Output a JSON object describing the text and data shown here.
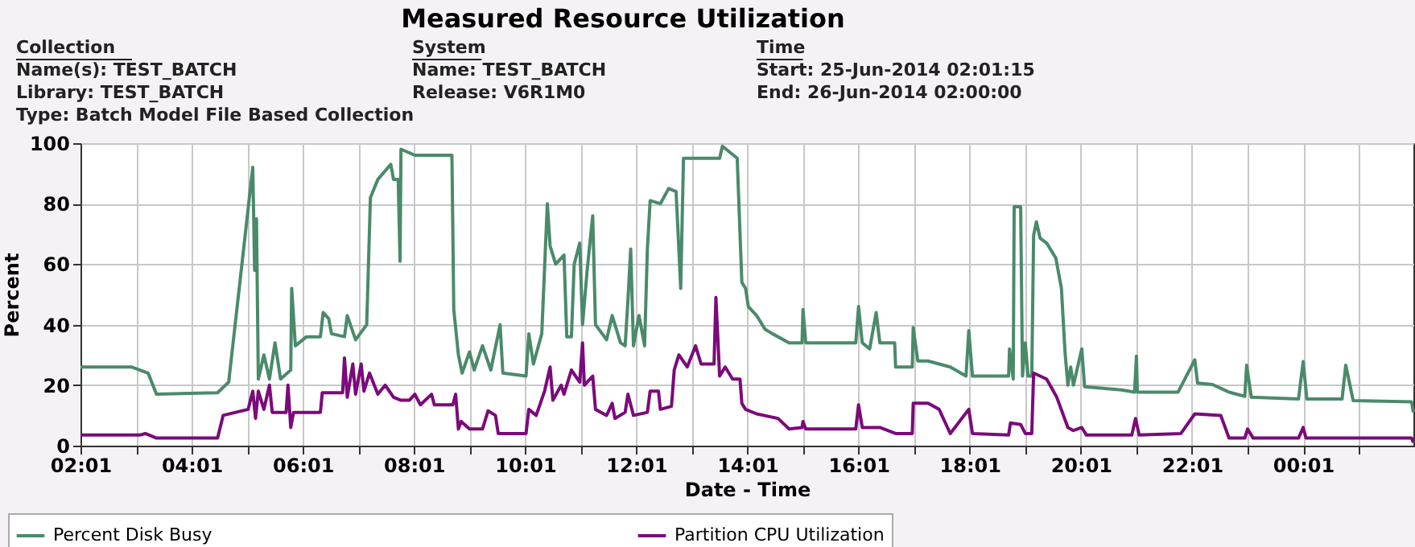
{
  "chart_data": {
    "type": "line",
    "title": "Measured Resource Utilization",
    "annotations": [
      "Collection",
      "Name(s): TEST_BATCH",
      "Library:  TEST_BATCH",
      "Type: Batch Model File Based Collection",
      "System",
      "Name:  TEST_BATCH",
      "Release: V6R1M0",
      "Time",
      "Start: 25-Jun-2014 02:01:15",
      "End: 26-Jun-2014 02:00:00"
    ],
    "xlabel": "Date - Time",
    "ylabel": "Percent",
    "xlim": [
      "2014-06-25T02:01",
      "2014-06-26T02:00"
    ],
    "ylim": [
      0,
      100
    ],
    "yticks": [
      0,
      20,
      40,
      60,
      80,
      100
    ],
    "xticks": [
      {
        "value": "2014-06-25T02:01",
        "label": "02:01"
      },
      {
        "value": "2014-06-25T03:01",
        "label": null
      },
      {
        "value": "2014-06-25T04:01",
        "label": "04:01"
      },
      {
        "value": "2014-06-25T05:01",
        "label": null
      },
      {
        "value": "2014-06-25T06:01",
        "label": "06:01"
      },
      {
        "value": "2014-06-25T07:01",
        "label": null
      },
      {
        "value": "2014-06-25T08:01",
        "label": "08:01"
      },
      {
        "value": "2014-06-25T09:01",
        "label": null
      },
      {
        "value": "2014-06-25T10:01",
        "label": "10:01"
      },
      {
        "value": "2014-06-25T11:01",
        "label": null
      },
      {
        "value": "2014-06-25T12:01",
        "label": "12:01"
      },
      {
        "value": "2014-06-25T13:01",
        "label": null
      },
      {
        "value": "2014-06-25T14:01",
        "label": "14:01"
      },
      {
        "value": "2014-06-25T15:01",
        "label": null
      },
      {
        "value": "2014-06-25T16:01",
        "label": "16:01"
      },
      {
        "value": "2014-06-25T17:01",
        "label": null
      },
      {
        "value": "2014-06-25T18:01",
        "label": "18:01"
      },
      {
        "value": "2014-06-25T19:01",
        "label": null
      },
      {
        "value": "2014-06-25T20:01",
        "label": "20:01"
      },
      {
        "value": "2014-06-25T21:01",
        "label": null
      },
      {
        "value": "2014-06-25T22:01",
        "label": "22:01"
      },
      {
        "value": "2014-06-25T23:01",
        "label": null
      },
      {
        "value": "2014-06-26T00:01",
        "label": "00:01"
      },
      {
        "value": "2014-06-26T01:01",
        "label": null
      }
    ],
    "grid": true,
    "legend": "bottom",
    "line_style": "solid",
    "marker": "none",
    "series": [
      {
        "name": "Percent Disk Busy",
        "color": "#4a8a6a",
        "x": [
          "2014-06-25T02:01",
          "2014-06-25T02:56",
          "2014-06-25T03:14",
          "2014-06-25T03:23",
          "2014-06-25T04:29",
          "2014-06-25T04:41",
          "2014-06-25T05:07",
          "2014-06-25T05:09",
          "2014-06-25T05:11",
          "2014-06-25T05:13",
          "2014-06-25T05:19",
          "2014-06-25T05:25",
          "2014-06-25T05:31",
          "2014-06-25T05:37",
          "2014-06-25T05:48",
          "2014-06-25T05:49",
          "2014-06-25T05:53",
          "2014-06-25T06:05",
          "2014-06-25T06:20",
          "2014-06-25T06:23",
          "2014-06-25T06:29",
          "2014-06-25T06:32",
          "2014-06-25T06:46",
          "2014-06-25T06:49",
          "2014-06-25T06:58",
          "2014-06-25T07:10",
          "2014-06-25T07:14",
          "2014-06-25T07:22",
          "2014-06-25T07:36",
          "2014-06-25T07:39",
          "2014-06-25T07:44",
          "2014-06-25T07:46",
          "2014-06-25T07:47",
          "2014-06-25T08:02",
          "2014-06-25T08:42",
          "2014-06-25T08:44",
          "2014-06-25T08:49",
          "2014-06-25T08:53",
          "2014-06-25T09:01",
          "2014-06-25T09:06",
          "2014-06-25T09:15",
          "2014-06-25T09:24",
          "2014-06-25T09:34",
          "2014-06-25T09:37",
          "2014-06-25T10:02",
          "2014-06-25T10:05",
          "2014-06-25T10:10",
          "2014-06-25T10:19",
          "2014-06-25T10:25",
          "2014-06-25T10:28",
          "2014-06-25T10:34",
          "2014-06-25T10:43",
          "2014-06-25T10:46",
          "2014-06-25T10:51",
          "2014-06-25T10:54",
          "2014-06-25T11:00",
          "2014-06-25T11:03",
          "2014-06-25T11:08",
          "2014-06-25T11:14",
          "2014-06-25T11:17",
          "2014-06-25T11:29",
          "2014-06-25T11:35",
          "2014-06-25T11:44",
          "2014-06-25T11:49",
          "2014-06-25T11:52",
          "2014-06-25T11:55",
          "2014-06-25T11:58",
          "2014-06-25T12:04",
          "2014-06-25T12:10",
          "2014-06-25T12:13",
          "2014-06-25T12:16",
          "2014-06-25T12:27",
          "2014-06-25T12:36",
          "2014-06-25T12:44",
          "2014-06-25T12:49",
          "2014-06-25T12:52",
          "2014-06-25T13:11",
          "2014-06-25T13:31",
          "2014-06-25T13:34",
          "2014-06-25T13:50",
          "2014-06-25T13:55",
          "2014-06-25T13:59",
          "2014-06-25T14:02",
          "2014-06-25T14:11",
          "2014-06-25T14:20",
          "2014-06-25T14:28",
          "2014-06-25T14:46",
          "2014-06-25T15:00",
          "2014-06-25T15:01",
          "2014-06-25T15:04",
          "2014-06-25T15:32",
          "2014-06-25T15:58",
          "2014-06-25T16:01",
          "2014-06-25T16:05",
          "2014-06-25T16:13",
          "2014-06-25T16:20",
          "2014-06-25T16:24",
          "2014-06-25T16:40",
          "2014-06-25T16:41",
          "2014-06-25T16:59",
          "2014-06-25T17:00",
          "2014-06-25T17:05",
          "2014-06-25T17:16",
          "2014-06-25T17:40",
          "2014-06-25T17:57",
          "2014-06-25T18:00",
          "2014-06-25T18:04",
          "2014-06-25T18:43",
          "2014-06-25T18:44",
          "2014-06-25T18:48",
          "2014-06-25T18:49",
          "2014-06-25T18:56",
          "2014-06-25T18:58",
          "2014-06-25T19:01",
          "2014-06-25T19:04",
          "2014-06-25T19:08",
          "2014-06-25T19:10",
          "2014-06-25T19:13",
          "2014-06-25T19:17",
          "2014-06-25T19:24",
          "2014-06-25T19:34",
          "2014-06-25T19:40",
          "2014-06-25T19:44",
          "2014-06-25T19:47",
          "2014-06-25T19:50",
          "2014-06-25T19:53",
          "2014-06-25T20:02",
          "2014-06-25T20:05",
          "2014-06-25T20:45",
          "2014-06-25T20:59",
          "2014-06-25T21:01",
          "2014-06-25T21:02",
          "2014-06-25T21:46",
          "2014-06-25T22:04",
          "2014-06-25T22:07",
          "2014-06-25T22:23",
          "2014-06-25T22:41",
          "2014-06-25T22:58",
          "2014-06-25T23:00",
          "2014-06-25T23:05",
          "2014-06-25T23:56",
          "2014-06-26T00:01",
          "2014-06-26T00:05",
          "2014-06-26T00:43",
          "2014-06-26T00:47",
          "2014-06-26T00:55",
          "2014-06-26T01:58",
          "2014-06-26T02:00"
        ],
        "values": [
          26,
          26,
          24,
          17,
          17.5,
          21,
          92,
          58,
          75,
          22,
          30,
          22,
          34,
          22,
          25,
          52,
          33,
          36,
          36,
          44,
          42,
          37,
          36,
          43,
          35,
          40,
          82,
          88,
          93,
          88,
          88,
          61,
          98,
          96,
          96,
          45,
          30,
          24,
          31,
          25,
          33,
          25,
          40,
          24,
          23,
          37,
          27,
          37,
          80,
          66,
          60,
          63,
          36,
          36,
          60,
          67,
          40,
          58,
          76,
          40,
          35,
          43,
          34,
          33,
          48,
          65,
          33,
          43,
          33,
          65,
          81,
          80,
          85,
          84,
          52,
          95,
          95,
          95,
          99,
          95,
          54,
          52,
          46,
          43,
          38.5,
          37,
          34,
          34,
          45,
          34,
          34,
          34,
          46,
          34,
          32,
          44,
          34,
          34,
          26,
          26,
          39,
          28,
          28,
          26,
          23,
          38,
          23,
          23,
          32,
          22,
          79,
          79,
          23,
          34,
          23,
          23,
          69.5,
          74,
          68.6,
          67,
          62,
          52,
          30.5,
          20,
          26,
          20,
          32,
          19.5,
          18.4,
          17.7,
          29.6,
          17.7,
          17.7,
          28.4,
          20.7,
          20.2,
          17.7,
          16.3,
          26.6,
          16,
          15.4,
          27.8,
          15.4,
          15.4,
          26.6,
          14.9,
          14.5,
          11
        ]
      },
      {
        "name": "Partition CPU Utilization",
        "color": "#7b0a7b",
        "x": [
          "2014-06-25T02:01",
          "2014-06-25T03:05",
          "2014-06-25T03:11",
          "2014-06-25T03:23",
          "2014-06-25T04:29",
          "2014-06-25T04:35",
          "2014-06-25T05:02",
          "2014-06-25T05:07",
          "2014-06-25T05:10",
          "2014-06-25T05:13",
          "2014-06-25T05:19",
          "2014-06-25T05:25",
          "2014-06-25T05:28",
          "2014-06-25T05:43",
          "2014-06-25T05:45",
          "2014-06-25T05:48",
          "2014-06-25T05:51",
          "2014-06-25T06:11",
          "2014-06-25T06:20",
          "2014-06-25T06:22",
          "2014-06-25T06:44",
          "2014-06-25T06:46",
          "2014-06-25T06:49",
          "2014-06-25T06:55",
          "2014-06-25T06:58",
          "2014-06-25T07:04",
          "2014-06-25T07:07",
          "2014-06-25T07:13",
          "2014-06-25T07:22",
          "2014-06-25T07:30",
          "2014-06-25T07:39",
          "2014-06-25T07:47",
          "2014-06-25T07:56",
          "2014-06-25T08:02",
          "2014-06-25T08:08",
          "2014-06-25T08:20",
          "2014-06-25T08:23",
          "2014-06-25T08:43",
          "2014-06-25T08:46",
          "2014-06-25T08:49",
          "2014-06-25T08:52",
          "2014-06-25T09:01",
          "2014-06-25T09:15",
          "2014-06-25T09:21",
          "2014-06-25T09:29",
          "2014-06-25T09:32",
          "2014-06-25T10:02",
          "2014-06-25T10:05",
          "2014-06-25T10:13",
          "2014-06-25T10:22",
          "2014-06-25T10:28",
          "2014-06-25T10:31",
          "2014-06-25T10:40",
          "2014-06-25T10:43",
          "2014-06-25T10:51",
          "2014-06-25T11:00",
          "2014-06-25T11:03",
          "2014-06-25T11:05",
          "2014-06-25T11:14",
          "2014-06-25T11:17",
          "2014-06-25T11:29",
          "2014-06-25T11:35",
          "2014-06-25T11:38",
          "2014-06-25T11:49",
          "2014-06-25T11:52",
          "2014-06-25T11:58",
          "2014-06-25T12:13",
          "2014-06-25T12:16",
          "2014-06-25T12:25",
          "2014-06-25T12:27",
          "2014-06-25T12:39",
          "2014-06-25T12:42",
          "2014-06-25T12:47",
          "2014-06-25T12:56",
          "2014-06-25T13:05",
          "2014-06-25T13:11",
          "2014-06-25T13:25",
          "2014-06-25T13:27",
          "2014-06-25T13:31",
          "2014-06-25T13:37",
          "2014-06-25T13:45",
          "2014-06-25T13:53",
          "2014-06-25T13:55",
          "2014-06-25T13:59",
          "2014-06-25T14:11",
          "2014-06-25T14:34",
          "2014-06-25T14:46",
          "2014-06-25T15:00",
          "2014-06-25T15:01",
          "2014-06-25T15:04",
          "2014-06-25T15:58",
          "2014-06-25T16:01",
          "2014-06-25T16:05",
          "2014-06-25T16:24",
          "2014-06-25T16:41",
          "2014-06-25T16:59",
          "2014-06-25T17:00",
          "2014-06-25T17:16",
          "2014-06-25T17:28",
          "2014-06-25T17:40",
          "2014-06-25T18:00",
          "2014-06-25T18:04",
          "2014-06-25T18:43",
          "2014-06-25T18:45",
          "2014-06-25T18:56",
          "2014-06-25T19:01",
          "2014-06-25T19:08",
          "2014-06-25T19:10",
          "2014-06-25T19:24",
          "2014-06-25T19:35",
          "2014-06-25T19:47",
          "2014-06-25T19:53",
          "2014-06-25T20:02",
          "2014-06-25T20:07",
          "2014-06-25T20:56",
          "2014-06-25T21:00",
          "2014-06-25T21:04",
          "2014-06-25T21:49",
          "2014-06-25T22:04",
          "2014-06-25T22:32",
          "2014-06-25T22:41",
          "2014-06-25T22:58",
          "2014-06-25T23:01",
          "2014-06-25T23:07",
          "2014-06-25T23:56",
          "2014-06-26T00:01",
          "2014-06-26T00:04",
          "2014-06-26T01:58",
          "2014-06-26T02:00"
        ],
        "values": [
          3.5,
          3.5,
          4,
          2.5,
          2.5,
          10,
          12,
          18,
          9,
          18,
          12,
          20,
          11,
          11,
          20,
          6,
          11,
          11,
          11,
          17.5,
          17.5,
          29,
          16,
          27,
          17,
          27,
          18,
          24,
          17,
          20,
          16,
          15,
          15,
          17,
          13.5,
          17,
          13.5,
          13.5,
          17,
          5.5,
          8,
          5.5,
          5.5,
          11.5,
          10,
          4,
          4,
          12,
          10,
          18,
          26,
          15,
          20,
          17,
          25,
          21,
          34,
          20,
          23,
          12,
          10,
          14,
          9,
          11,
          17,
          10,
          11,
          18,
          18,
          12,
          13,
          25,
          30,
          26,
          33,
          27,
          27,
          49,
          23,
          26,
          22,
          22,
          14,
          12,
          10.5,
          9,
          5.5,
          6,
          8,
          5.5,
          5.5,
          13.5,
          6,
          6,
          4,
          4,
          14,
          14,
          12,
          4,
          12,
          4,
          3.5,
          7.5,
          7,
          4,
          4,
          24,
          22,
          16,
          6,
          5,
          6,
          3.5,
          3.5,
          9,
          3.5,
          4,
          10.5,
          10,
          2.5,
          2.5,
          5.5,
          2.5,
          2.5,
          6,
          2.5,
          2.5,
          1
        ]
      }
    ]
  }
}
